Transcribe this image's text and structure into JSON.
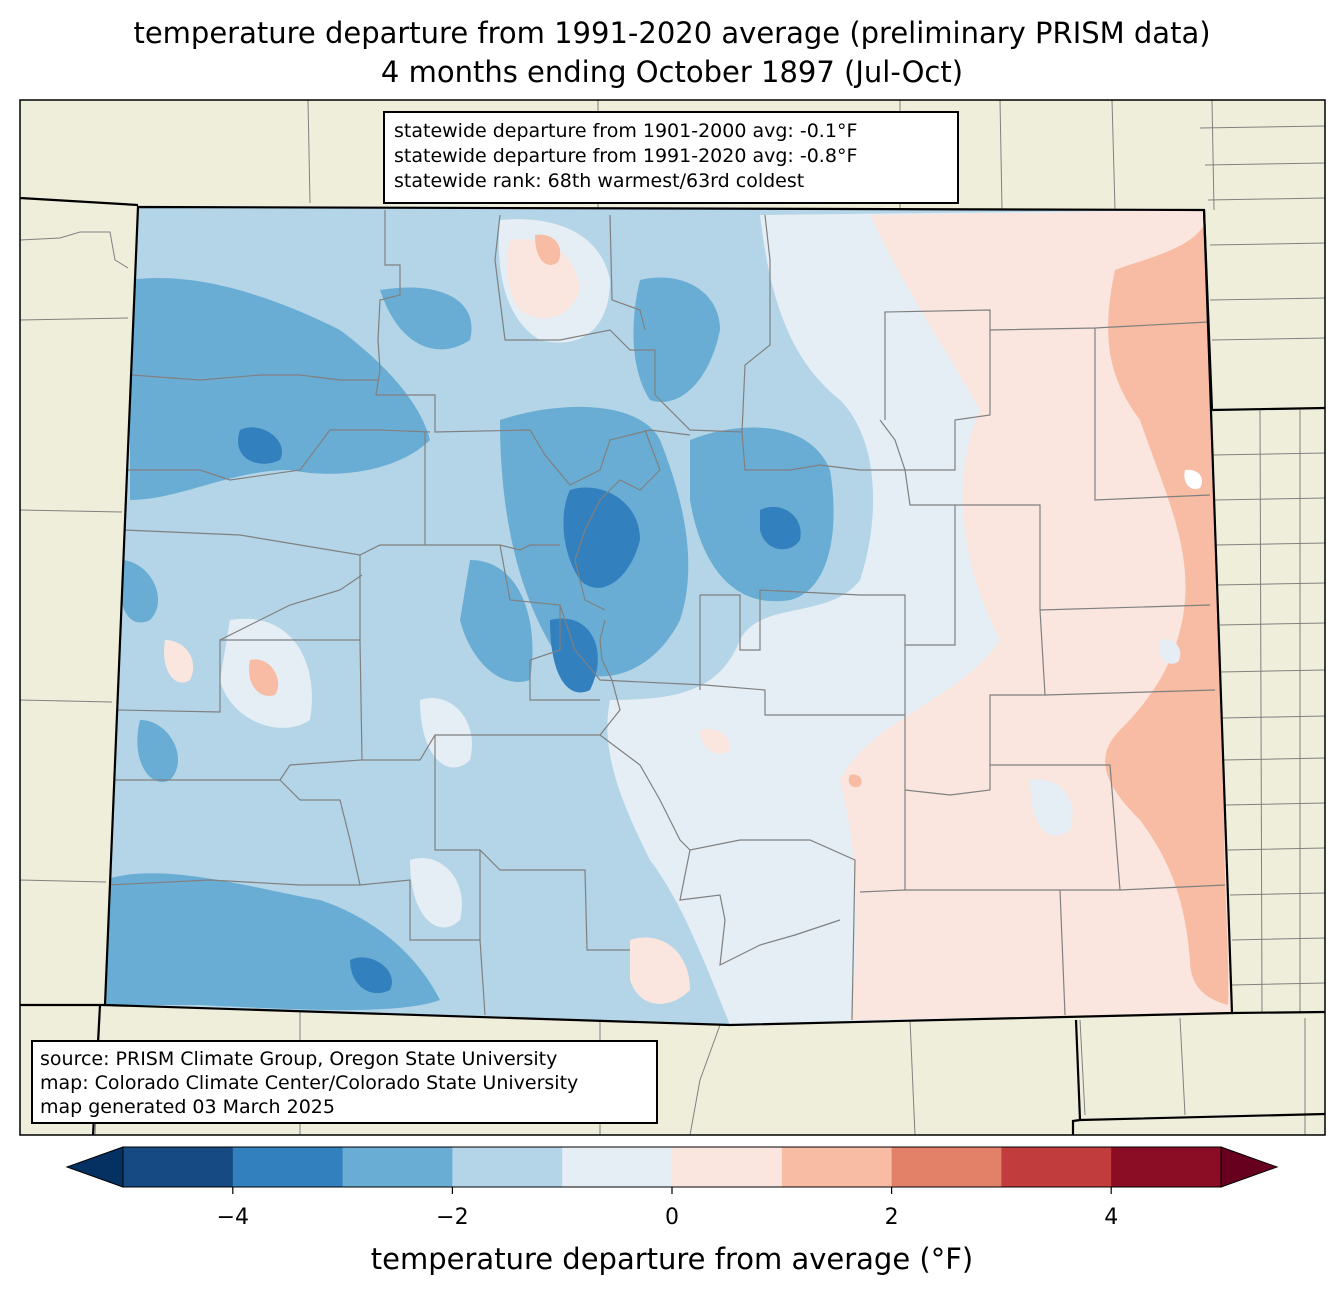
{
  "title": {
    "line1": "temperature departure from 1991-2020 average (preliminary PRISM data)",
    "line2": "4 months ending October 1897 (Jul-Oct)"
  },
  "stats": {
    "line1": "statewide departure from 1901-2000 avg: -0.1°F",
    "line2": "statewide departure from 1991-2020 avg: -0.8°F",
    "line3": "statewide rank: 68th warmest/63rd coldest"
  },
  "source": {
    "line1": "source: PRISM Climate Group, Oregon State University",
    "line2": "map: Colorado Climate Center/Colorado State University",
    "line3": "map generated 03 March 2025"
  },
  "colorbar": {
    "label": "temperature departure from average (°F)",
    "ticks": [
      "−4",
      "−2",
      "0",
      "2",
      "4"
    ],
    "tick_values": [
      -4,
      -2,
      0,
      2,
      4
    ],
    "min": -5,
    "max": 5,
    "colors": [
      "#164a83",
      "#3280bd",
      "#6aadd4",
      "#b3d5e7",
      "#e5eef4",
      "#fae6df",
      "#f7bca3",
      "#e38068",
      "#c13c3c",
      "#8a0d25"
    ],
    "under_color": "#053062",
    "over_color": "#67001f"
  },
  "map": {
    "land_color": "#efeedb",
    "state_border_color": "#000000",
    "county_border_color": "#808080"
  }
}
